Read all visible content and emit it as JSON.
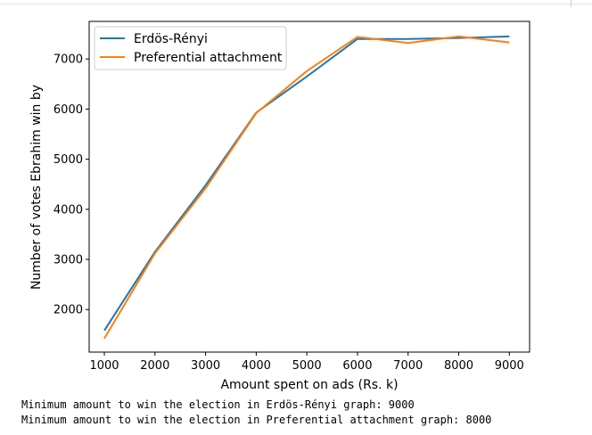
{
  "chart_data": {
    "type": "line",
    "xlabel": "Amount spent on ads (Rs. k)",
    "ylabel": "Number of votes Ebrahim win by",
    "x": [
      1000,
      2000,
      3000,
      4000,
      5000,
      6000,
      7000,
      8000,
      9000
    ],
    "xlim": [
      700,
      9400
    ],
    "ylim": [
      1150,
      7750
    ],
    "xticks": [
      1000,
      2000,
      3000,
      4000,
      5000,
      6000,
      7000,
      8000,
      9000
    ],
    "yticks": [
      2000,
      3000,
      4000,
      5000,
      6000,
      7000
    ],
    "grid": false,
    "legend_position": "top-left",
    "series": [
      {
        "name": "Erdös-Rényi",
        "color": "#1f77b4",
        "values": [
          1580,
          3150,
          4480,
          5930,
          6650,
          7400,
          7400,
          7420,
          7450
        ]
      },
      {
        "name": "Preferential attachment",
        "color": "#ff7f0e",
        "values": [
          1420,
          3120,
          4420,
          5920,
          6760,
          7440,
          7320,
          7450,
          7330
        ]
      }
    ]
  },
  "output_lines": [
    "Minimum amount to win the election in Erdös-Rényi graph: 9000",
    "Minimum amount to win the election in Preferential attachment graph: 8000"
  ]
}
